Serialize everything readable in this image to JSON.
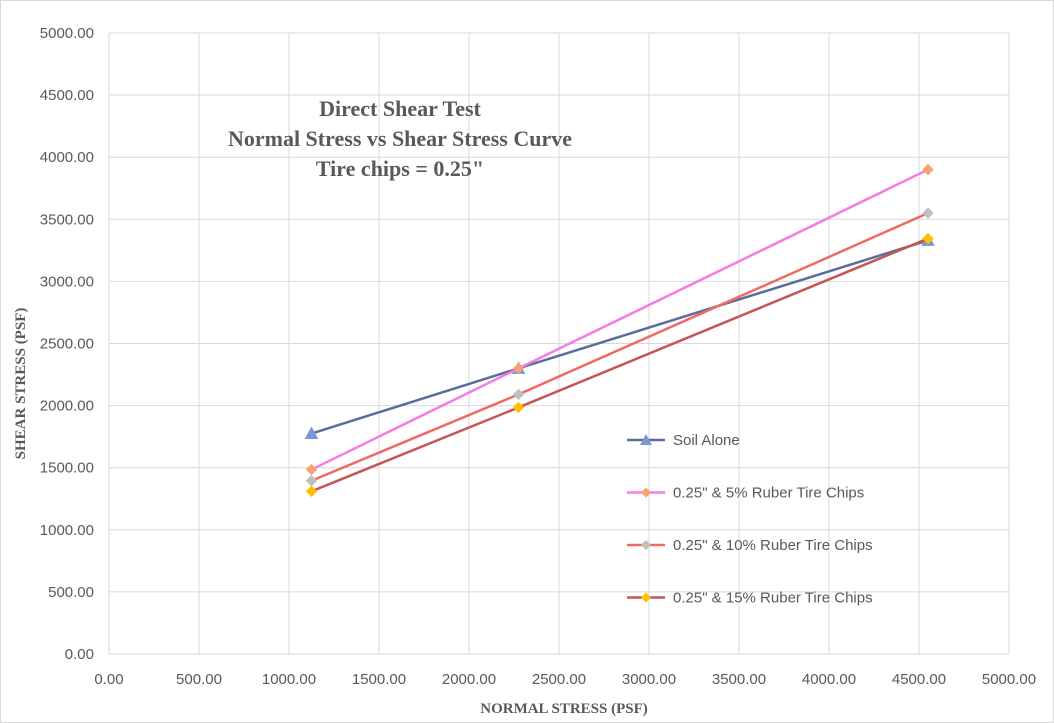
{
  "chart_data": {
    "type": "line",
    "title_lines": [
      "Direct Shear Test",
      "Normal Stress vs Shear Stress Curve",
      "Tire chips = 0.25\""
    ],
    "xlabel": "NORMAL STRESS (PSF)",
    "ylabel": "SHEAR STRESS (PSF)",
    "xlim": [
      0,
      5000
    ],
    "ylim": [
      0,
      5000
    ],
    "x_ticks": [
      "0.00",
      "500.00",
      "1000.00",
      "1500.00",
      "2000.00",
      "2500.00",
      "3000.00",
      "3500.00",
      "4000.00",
      "4500.00",
      "5000.00"
    ],
    "y_ticks": [
      "0.00",
      "500.00",
      "1000.00",
      "1500.00",
      "2000.00",
      "2500.00",
      "3000.00",
      "3500.00",
      "4000.00",
      "4500.00",
      "5000.00"
    ],
    "grid": true,
    "legend_position": "right",
    "series": [
      {
        "name": "Soil Alone",
        "line_color": "#5a6e9c",
        "marker_color": "#7b97d6",
        "marker": "triangle",
        "points": [
          [
            1125,
            1775
          ],
          [
            2275,
            2300
          ],
          [
            4550,
            3330
          ]
        ]
      },
      {
        "name": "0.25\" & 5% Ruber Tire Chips",
        "line_color": "#f37de0",
        "marker_color": "#f4a272",
        "marker": "diamond",
        "points": [
          [
            1125,
            1485
          ],
          [
            2275,
            2300
          ],
          [
            4550,
            3900
          ]
        ]
      },
      {
        "name": "0.25\" & 10% Ruber Tire Chips",
        "line_color": "#ee6a63",
        "marker_color": "#bfbfbf",
        "marker": "diamond",
        "points": [
          [
            1125,
            1395
          ],
          [
            2275,
            2090
          ],
          [
            4550,
            3550
          ]
        ]
      },
      {
        "name": "0.25\" & 15% Ruber Tire Chips",
        "line_color": "#c65656",
        "marker_color": "#ffc000",
        "marker": "diamond",
        "points": [
          [
            1125,
            1310
          ],
          [
            2275,
            1985
          ],
          [
            4550,
            3345
          ]
        ]
      }
    ]
  }
}
